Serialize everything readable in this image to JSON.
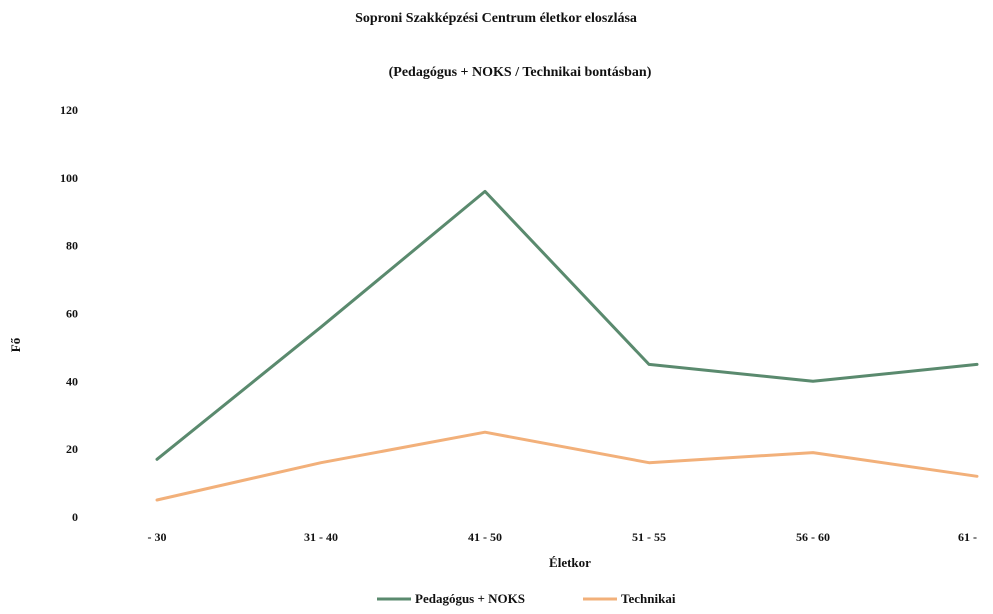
{
  "chart_data": {
    "type": "line",
    "title": "Soproni Szakképzési Centrum életkor eloszlása",
    "subtitle": "(Pedagógus + NOKS / Technikai bontásban)",
    "xlabel": "Életkor",
    "ylabel": "Fő",
    "categories": [
      "- 30",
      "31 - 40",
      "41 - 50",
      "51 - 55",
      "56 - 60",
      "61 -"
    ],
    "ylim": [
      0,
      120
    ],
    "yticks": [
      "0",
      "20",
      "40",
      "60",
      "80",
      "100",
      "120"
    ],
    "grid": false,
    "legend_position": "bottom",
    "series": [
      {
        "name": "Pedagógus + NOKS",
        "color": "#5a8a6e",
        "values": [
          17,
          56,
          96,
          45,
          40,
          45
        ]
      },
      {
        "name": "Technikai",
        "color": "#f2b07a",
        "values": [
          5,
          16,
          25,
          16,
          19,
          12
        ]
      }
    ]
  }
}
